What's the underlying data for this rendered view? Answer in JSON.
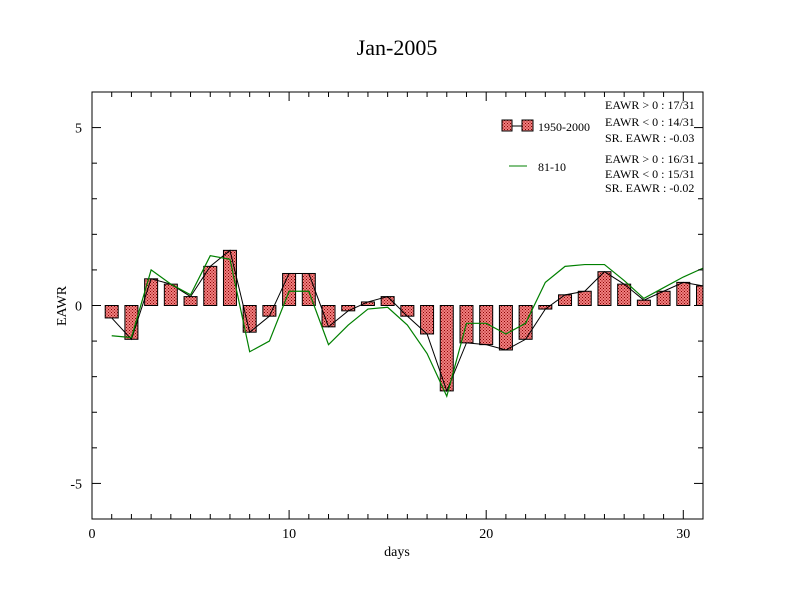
{
  "chart_data": {
    "type": "bar",
    "title": "Jan-2005",
    "xlabel": "days",
    "ylabel": "EAWR",
    "xlim": [
      0,
      31
    ],
    "ylim": [
      -6,
      6
    ],
    "xticks": [
      0,
      10,
      20,
      30
    ],
    "yticks": [
      -5,
      0,
      5
    ],
    "grid": false,
    "legend_position": "top-right",
    "colors": {
      "bar_fill": "#f08080",
      "bar_hatch": "#8b0000",
      "bar_line": "#000000",
      "clim_line": "#008000"
    },
    "series": [
      {
        "name": "1950-2000",
        "kind": "bar+line",
        "x": [
          1,
          2,
          3,
          4,
          5,
          6,
          7,
          8,
          9,
          10,
          11,
          12,
          13,
          14,
          15,
          16,
          17,
          18,
          19,
          20,
          21,
          22,
          23,
          24,
          25,
          26,
          27,
          28,
          29,
          30,
          31
        ],
        "values": [
          -0.35,
          -0.95,
          0.75,
          0.6,
          0.25,
          1.1,
          1.55,
          -0.75,
          -0.3,
          0.9,
          0.9,
          -0.6,
          -0.15,
          0.1,
          0.25,
          -0.3,
          -0.8,
          -2.4,
          -1.05,
          -1.1,
          -1.25,
          -0.95,
          -0.1,
          0.3,
          0.4,
          0.95,
          0.6,
          0.15,
          0.4,
          0.65,
          0.55
        ]
      },
      {
        "name": "81-10",
        "kind": "line",
        "x": [
          1,
          2,
          3,
          4,
          5,
          6,
          7,
          8,
          9,
          10,
          11,
          12,
          13,
          14,
          15,
          16,
          17,
          18,
          19,
          20,
          21,
          22,
          23,
          24,
          25,
          26,
          27,
          28,
          29,
          30,
          31
        ],
        "values": [
          -0.85,
          -0.9,
          1.0,
          0.6,
          0.3,
          1.4,
          1.3,
          -1.3,
          -1.0,
          0.4,
          0.4,
          -1.1,
          -0.55,
          -0.1,
          -0.05,
          -0.55,
          -1.35,
          -2.55,
          -0.5,
          -0.5,
          -0.8,
          -0.5,
          0.65,
          1.1,
          1.15,
          1.15,
          0.7,
          0.2,
          0.5,
          0.8,
          1.05
        ]
      }
    ],
    "annotations": {
      "set1": [
        "EAWR > 0 : 17/31",
        "EAWR < 0 : 14/31",
        "SR. EAWR : -0.03"
      ],
      "set2": [
        "EAWR > 0 : 16/31",
        "EAWR < 0 : 15/31",
        "SR. EAWR : -0.02"
      ]
    }
  }
}
